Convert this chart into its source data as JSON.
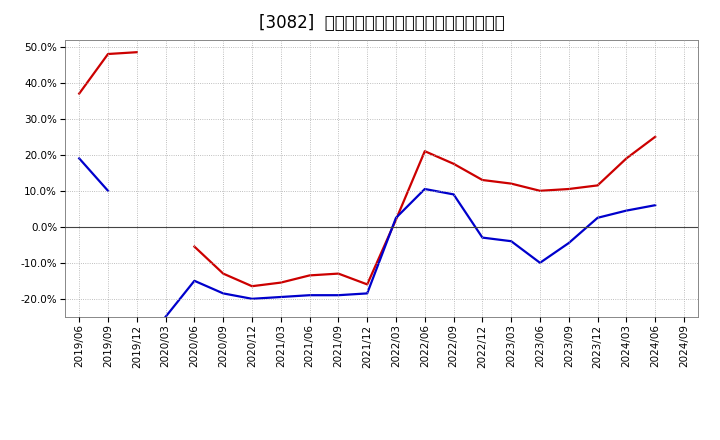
{
  "title": "[3082]  有利子負債キャッシュフロー比率の推移",
  "xlabel_dates": [
    "2019/06",
    "2019/09",
    "2019/12",
    "2020/03",
    "2020/06",
    "2020/09",
    "2020/12",
    "2021/03",
    "2021/06",
    "2021/09",
    "2021/12",
    "2022/03",
    "2022/06",
    "2022/09",
    "2022/12",
    "2023/03",
    "2023/06",
    "2023/09",
    "2023/12",
    "2024/03",
    "2024/06",
    "2024/09"
  ],
  "red_series": {
    "color": "#cc0000",
    "values": [
      37.0,
      48.0,
      48.5,
      null,
      -5.5,
      -13.0,
      -16.5,
      -15.5,
      -13.5,
      -13.0,
      -16.0,
      2.0,
      21.0,
      17.5,
      13.0,
      12.0,
      10.0,
      10.5,
      11.5,
      19.0,
      25.0,
      null
    ]
  },
  "blue_series": {
    "color": "#0000cc",
    "values": [
      19.0,
      10.0,
      null,
      -25.0,
      -15.0,
      -18.5,
      -20.0,
      -19.5,
      -19.0,
      -19.0,
      -18.5,
      2.5,
      10.5,
      9.0,
      -3.0,
      -4.0,
      -10.0,
      -4.5,
      2.5,
      4.5,
      6.0,
      null
    ]
  },
  "ylim": [
    -25.0,
    52.0
  ],
  "yticks": [
    -20.0,
    -10.0,
    0.0,
    10.0,
    20.0,
    30.0,
    40.0,
    50.0
  ],
  "bg_color": "#ffffff",
  "plot_bg_color": "#ffffff",
  "grid_color": "#aaaaaa",
  "title_fontsize": 12,
  "legend_fontsize": 9,
  "tick_fontsize": 7.5
}
